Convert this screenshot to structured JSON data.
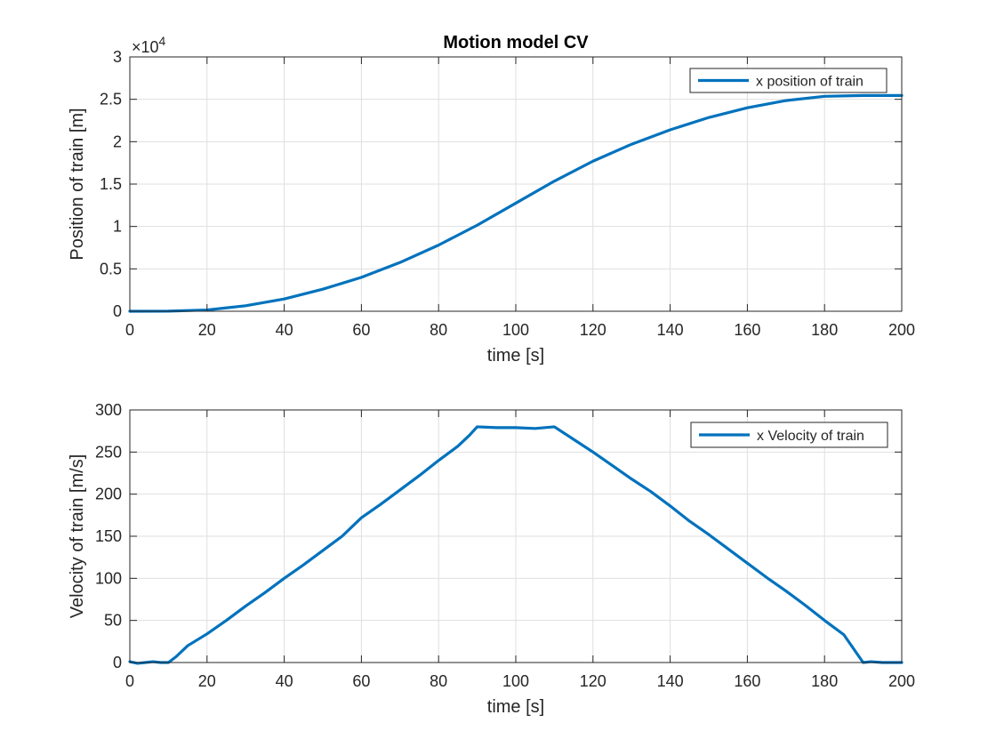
{
  "chart_data": [
    {
      "type": "line",
      "title": "Motion model CV",
      "xlabel": "time [s]",
      "ylabel": "Position of train [m]",
      "xlim": [
        0,
        200
      ],
      "ylim": [
        0,
        30000
      ],
      "x_ticks": [
        0,
        20,
        40,
        60,
        80,
        100,
        120,
        140,
        160,
        180,
        200
      ],
      "y_ticks": [
        0,
        5000,
        10000,
        15000,
        20000,
        25000,
        30000
      ],
      "y_tick_labels": [
        "0",
        "0.5",
        "1",
        "1.5",
        "2",
        "2.5",
        "3"
      ],
      "y_exponent_label": "×10",
      "y_exponent_power": "4",
      "grid": true,
      "legend": "top-right",
      "series": [
        {
          "name": "x position of train",
          "color": "#0072BD",
          "x": [
            0,
            10,
            20,
            30,
            40,
            50,
            60,
            70,
            80,
            90,
            100,
            110,
            120,
            130,
            140,
            150,
            160,
            170,
            180,
            190,
            200
          ],
          "y": [
            0,
            10,
            150,
            650,
            1450,
            2600,
            4000,
            5750,
            7800,
            10150,
            12750,
            15350,
            17700,
            19700,
            21400,
            22850,
            24000,
            24850,
            25350,
            25450,
            25450
          ]
        }
      ]
    },
    {
      "type": "line",
      "title": "",
      "xlabel": "time [s]",
      "ylabel": "Velocity of train [m/s]",
      "xlim": [
        0,
        200
      ],
      "ylim": [
        0,
        300
      ],
      "x_ticks": [
        0,
        20,
        40,
        60,
        80,
        100,
        120,
        140,
        160,
        180,
        200
      ],
      "y_ticks": [
        0,
        50,
        100,
        150,
        200,
        250,
        300
      ],
      "y_tick_labels": [
        "0",
        "50",
        "100",
        "150",
        "200",
        "250",
        "300"
      ],
      "grid": true,
      "legend": "top-right",
      "series": [
        {
          "name": "x Velocity of train",
          "color": "#0072BD",
          "x": [
            0,
            2,
            4,
            6,
            8,
            10,
            12,
            15,
            20,
            25,
            30,
            35,
            40,
            45,
            50,
            55,
            60,
            65,
            70,
            75,
            80,
            85,
            88,
            90,
            95,
            100,
            105,
            110,
            115,
            120,
            125,
            130,
            135,
            140,
            145,
            150,
            155,
            160,
            165,
            170,
            175,
            180,
            185,
            190,
            192,
            195,
            200
          ],
          "y": [
            1,
            -1,
            0,
            1,
            0,
            0,
            7,
            20,
            34,
            50,
            67,
            83,
            100,
            116,
            133,
            150,
            172,
            188,
            205,
            222,
            240,
            257,
            270,
            280,
            279,
            279,
            278,
            280,
            265,
            250,
            234,
            218,
            203,
            186,
            168,
            152,
            135,
            118,
            101,
            85,
            68,
            50,
            33,
            0,
            1,
            0,
            0
          ]
        }
      ]
    }
  ]
}
